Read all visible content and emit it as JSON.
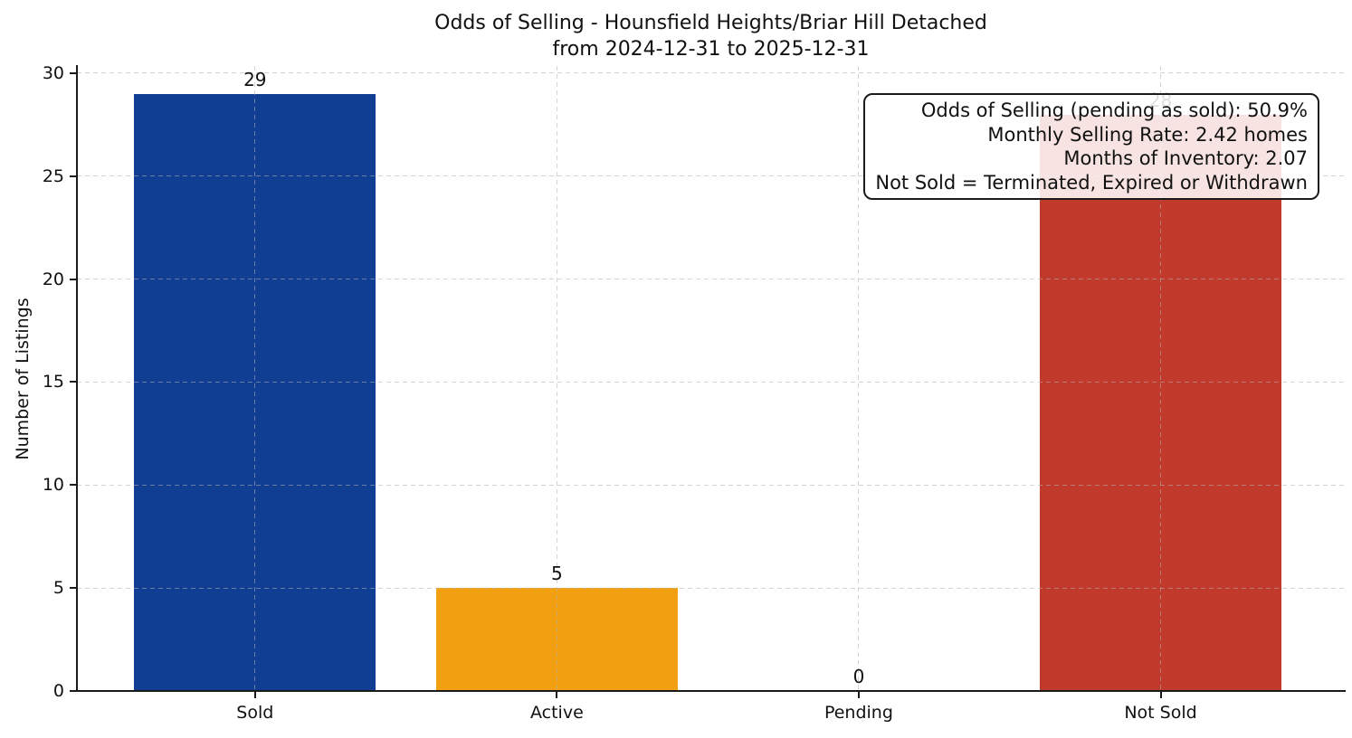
{
  "figure": {
    "title_line1": "Odds of Selling - Hounsfield Heights/Briar Hill Detached",
    "title_line2": "from 2024-12-31 to 2025-12-31"
  },
  "chart_data": {
    "type": "bar",
    "title": "Odds of Selling - Hounsfield Heights/Briar Hill Detached\nfrom 2024-12-31 to 2025-12-31",
    "categories": [
      "Sold",
      "Active",
      "Pending",
      "Not Sold"
    ],
    "values": [
      29,
      5,
      0,
      28
    ],
    "bar_labels": [
      "29",
      "5",
      "0",
      "28"
    ],
    "bar_colors": [
      "#103e92",
      "#f2a011",
      "#999999",
      "#c23a2b"
    ],
    "xlabel": "",
    "ylabel": "Number of Listings",
    "yticks": [
      0,
      5,
      10,
      15,
      20,
      25,
      30
    ],
    "ylim": [
      0,
      30.35
    ],
    "grid": "dashed light-gray horizontal and vertical gridlines drawn over bars",
    "legend": "none",
    "annotation": {
      "lines": [
        "Odds of Selling (pending as sold): 50.9%",
        "Monthly Selling Rate: 2.42 homes",
        "Months of Inventory: 2.07",
        "Not Sold = Terminated, Expired or Withdrawn"
      ],
      "position": "top-right",
      "style": "rounded rectangle, black border, translucent white fill, right-aligned text"
    },
    "colors": {
      "sold_bar": "#103e92",
      "active_bar": "#f2a011",
      "not_sold_bar": "#c23a2b",
      "axis_spine": "#1a1a1a",
      "gridline": "#b2b2b2",
      "text": "#111111",
      "background": "#ffffff"
    }
  }
}
